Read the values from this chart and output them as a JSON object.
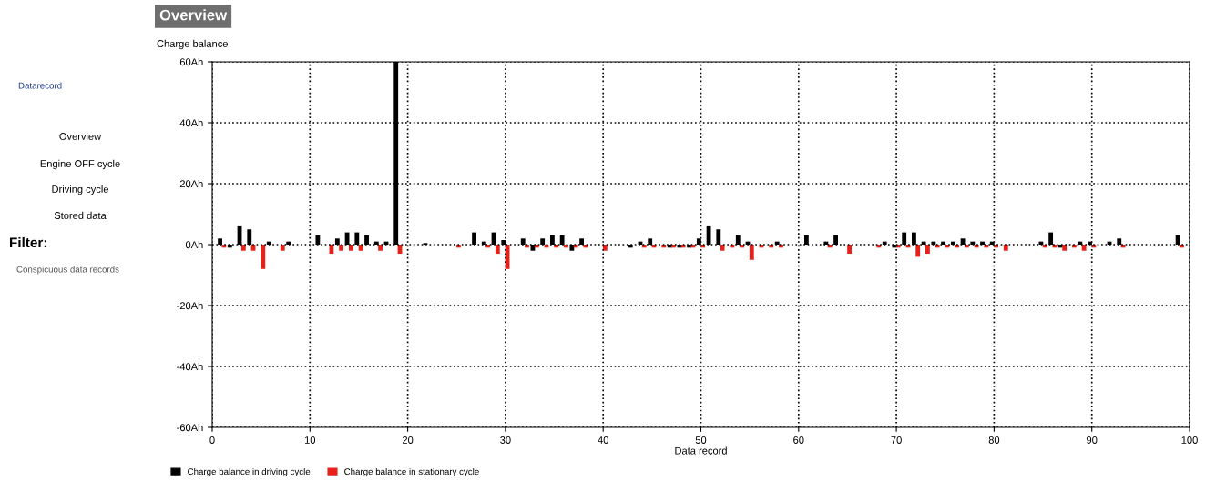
{
  "chart_data": {
    "type": "bar",
    "title": "Overview",
    "ylabel": "Charge balance",
    "xlabel": "Data record",
    "xlim": [
      0,
      100
    ],
    "xticks": [
      0,
      10,
      20,
      30,
      40,
      50,
      60,
      70,
      80,
      90,
      100
    ],
    "ylim": [
      -60,
      60
    ],
    "yticks": [
      {
        "value": -60,
        "label": "-60Ah"
      },
      {
        "value": -40,
        "label": "-40Ah"
      },
      {
        "value": -20,
        "label": "-20Ah"
      },
      {
        "value": 0,
        "label": "0Ah"
      },
      {
        "value": 20,
        "label": "20Ah"
      },
      {
        "value": 40,
        "label": "40Ah"
      },
      {
        "value": 60,
        "label": "60Ah"
      }
    ],
    "grid": true,
    "line_style": "dotted",
    "legend": "bottom",
    "series": [
      {
        "name": "Charge balance in driving cycle",
        "color": "#000000",
        "x": [
          1,
          2,
          3,
          4,
          6,
          8,
          11,
          13,
          14,
          15,
          16,
          17,
          18,
          19,
          22,
          27,
          28,
          29,
          30,
          32,
          33,
          34,
          35,
          36,
          37,
          38,
          43,
          44,
          45,
          47,
          48,
          49,
          50,
          51,
          52,
          54,
          55,
          58,
          61,
          63,
          64,
          69,
          70,
          71,
          72,
          73,
          74,
          75,
          76,
          77,
          78,
          79,
          80,
          85,
          86,
          87,
          89,
          90,
          92,
          93,
          99
        ],
        "values": [
          2,
          -1,
          6,
          5,
          1,
          1,
          3,
          2,
          4,
          4,
          3,
          1,
          1,
          60,
          0.5,
          4,
          1,
          4,
          1.5,
          2,
          -2,
          2,
          3,
          3,
          -2,
          2,
          -1,
          1,
          2,
          -1,
          -1,
          -1,
          2,
          6,
          5,
          3,
          1,
          1,
          3,
          1,
          3,
          1,
          -1,
          4,
          4,
          1,
          1,
          1,
          1,
          2,
          1,
          1,
          1,
          1,
          4,
          -1,
          1,
          1,
          1,
          2,
          3
        ]
      },
      {
        "name": "Charge balance in stationary cycle",
        "color": "#e8201a",
        "x": [
          1,
          3,
          4,
          5,
          7,
          12,
          13,
          14,
          15,
          17,
          19,
          25,
          28,
          29,
          30,
          32,
          33,
          34,
          35,
          36,
          37,
          38,
          40,
          44,
          45,
          46,
          47,
          48,
          49,
          50,
          52,
          53,
          54,
          55,
          56,
          57,
          58,
          63,
          65,
          68,
          70,
          71,
          72,
          73,
          74,
          75,
          76,
          77,
          78,
          79,
          80,
          81,
          85,
          86,
          87,
          88,
          89,
          90,
          93,
          99
        ],
        "values": [
          -1,
          -2,
          -2,
          -8,
          -2,
          -3,
          -2,
          -2,
          -2,
          -2,
          -3,
          -1,
          -1,
          -3,
          -8,
          -1,
          -1,
          -1,
          -1,
          -1,
          -1,
          -1,
          -2,
          -1,
          -1,
          -1,
          -1,
          -1,
          -1,
          -1,
          -2,
          -1,
          -1,
          -5,
          -1,
          -1,
          -1,
          -1,
          -3,
          -1,
          -1,
          -1,
          -4,
          -3,
          -1,
          -1,
          -1,
          -1,
          -1,
          -1,
          -1,
          -2,
          -1,
          -1,
          -2,
          -1,
          -2,
          -1,
          -1,
          -1
        ]
      }
    ],
    "annotations": [
      "Datarecord",
      "Overview",
      "Engine OFF cycle",
      "Driving cycle",
      "Stored data",
      "Filter:",
      "Conspicuous data records"
    ]
  }
}
